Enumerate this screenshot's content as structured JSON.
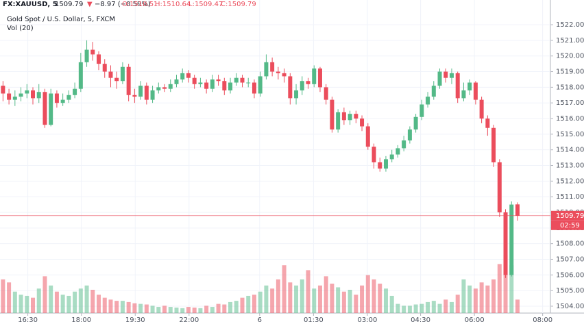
{
  "chart_data": {
    "type": "candlestick",
    "header": [
      "FX:XAUUSD, 5",
      "1509.79",
      "▼",
      "−8.97 (−0.59%)",
      "O:1510.51",
      "H:1510.64",
      "L:1509.47",
      "C:1509.79"
    ],
    "title": "Gold Spot / U.S. Dollar, 5, FXCM",
    "volume_label": "Vol (20)",
    "last_price_label": "1509.79",
    "countdown_label": "02:59",
    "up_color": "#53b987",
    "down_color": "#eb4d5c",
    "grid": true,
    "ylim": [
      1503.56,
      1523.58
    ],
    "yticks": [
      {
        "value": 1504,
        "label": "1504.00"
      },
      {
        "value": 1505,
        "label": "1505.00"
      },
      {
        "value": 1506,
        "label": "1506.00"
      },
      {
        "value": 1507,
        "label": "1507.00"
      },
      {
        "value": 1508,
        "label": "1508.00"
      },
      {
        "value": 1509,
        "label": "1509.00"
      },
      {
        "value": 1510,
        "label": "1510.00"
      },
      {
        "value": 1511,
        "label": "1511.00"
      },
      {
        "value": 1512,
        "label": "1512.00"
      },
      {
        "value": 1513,
        "label": "1513.00"
      },
      {
        "value": 1514,
        "label": "1514.00"
      },
      {
        "value": 1515,
        "label": "1515.00"
      },
      {
        "value": 1516,
        "label": "1516.00"
      },
      {
        "value": 1517,
        "label": "1517.00"
      },
      {
        "value": 1518,
        "label": "1518.00"
      },
      {
        "value": 1519,
        "label": "1519.00"
      },
      {
        "value": 1520,
        "label": "1520.00"
      },
      {
        "value": 1521,
        "label": "1521.00"
      },
      {
        "value": 1522,
        "label": "1522.00"
      }
    ],
    "xlim": [
      0,
      92
    ],
    "xticks": [
      {
        "value": 4.65,
        "label": "16:30"
      },
      {
        "value": 13.6,
        "label": "18:00"
      },
      {
        "value": 22.6,
        "label": "19:30"
      },
      {
        "value": 31.6,
        "label": "22:00"
      },
      {
        "value": 43.4,
        "label": "6"
      },
      {
        "value": 52.4,
        "label": "01:30"
      },
      {
        "value": 61.4,
        "label": "03:00"
      },
      {
        "value": 70.3,
        "label": "04:30"
      },
      {
        "value": 79.3,
        "label": "06:00"
      },
      {
        "value": 90.7,
        "label": "08:00"
      }
    ],
    "series": [
      {
        "open": [
          1518.1,
          1517.6,
          1517.2,
          1517.4,
          1517.6,
          1517.8,
          1517.3,
          1517.7,
          1515.6,
          1517.6,
          1517.0,
          1517.2,
          1517.5,
          1517.9,
          1519.6,
          1520.4,
          1520.1,
          1519.5,
          1519.0,
          1518.6,
          1518.4,
          1519.3,
          1517.5,
          1517.4,
          1518.1,
          1517.2,
          1517.8,
          1518.0,
          1517.9,
          1518.2,
          1518.5,
          1518.9,
          1518.6,
          1518.2,
          1518.3,
          1517.9,
          1518.5,
          1518.4,
          1517.8,
          1518.3,
          1518.6,
          1518.3,
          1518.3,
          1517.6,
          1518.7,
          1519.6,
          1519.0,
          1518.9,
          1518.7,
          1517.3,
          1517.8,
          1518.4,
          1518.2,
          1519.2,
          1518.0,
          1517.2,
          1515.3,
          1516.4,
          1515.9,
          1516.3,
          1516.0,
          1515.5,
          1514.2,
          1513.2,
          1512.8,
          1513.4,
          1513.7,
          1514.1,
          1514.6,
          1515.3,
          1516.1,
          1516.9,
          1517.4,
          1518.1,
          1519.0,
          1518.6,
          1518.9,
          1517.3,
          1517.8,
          1518.3,
          1517.2,
          1516.0,
          1515.4,
          1513.2,
          1510.0,
          1506.0,
          1510.51
        ],
        "high": [
          1518.4,
          1517.9,
          1517.8,
          1518.0,
          1518.2,
          1518.0,
          1518.2,
          1517.9,
          1517.9,
          1517.8,
          1517.6,
          1517.8,
          1518.3,
          1520.2,
          1521.0,
          1520.9,
          1520.3,
          1519.8,
          1519.4,
          1519.0,
          1519.6,
          1519.5,
          1517.9,
          1518.4,
          1518.3,
          1518.1,
          1518.3,
          1518.2,
          1518.5,
          1518.8,
          1519.2,
          1519.1,
          1518.8,
          1518.6,
          1518.5,
          1518.8,
          1518.8,
          1518.6,
          1518.6,
          1518.9,
          1518.8,
          1518.6,
          1518.5,
          1519.0,
          1520.1,
          1519.9,
          1519.3,
          1519.2,
          1518.9,
          1518.2,
          1518.7,
          1518.6,
          1519.4,
          1519.3,
          1518.2,
          1517.4,
          1516.6,
          1516.7,
          1516.5,
          1516.5,
          1516.2,
          1515.7,
          1514.4,
          1513.5,
          1513.6,
          1514.0,
          1514.3,
          1514.9,
          1515.5,
          1516.3,
          1517.2,
          1517.7,
          1518.4,
          1519.2,
          1519.2,
          1519.2,
          1519.0,
          1518.3,
          1518.5,
          1518.4,
          1517.4,
          1516.2,
          1515.6,
          1513.4,
          1510.2,
          1510.7,
          1510.64
        ],
        "low": [
          1517.1,
          1516.9,
          1516.8,
          1517.1,
          1517.3,
          1516.9,
          1517.0,
          1515.4,
          1515.5,
          1516.7,
          1516.8,
          1517.0,
          1517.3,
          1517.7,
          1519.3,
          1519.7,
          1519.1,
          1518.6,
          1518.0,
          1517.9,
          1518.2,
          1517.1,
          1517.0,
          1517.2,
          1516.9,
          1517.0,
          1517.6,
          1517.7,
          1517.7,
          1518.0,
          1518.3,
          1518.3,
          1517.9,
          1518.0,
          1517.6,
          1517.7,
          1518.1,
          1517.5,
          1517.6,
          1518.1,
          1518.0,
          1518.0,
          1517.3,
          1517.4,
          1518.5,
          1518.7,
          1518.5,
          1518.3,
          1516.9,
          1516.9,
          1517.5,
          1517.9,
          1518.0,
          1517.7,
          1516.9,
          1515.1,
          1515.1,
          1515.6,
          1515.6,
          1515.7,
          1515.2,
          1514.0,
          1512.8,
          1512.6,
          1512.6,
          1513.2,
          1513.5,
          1513.9,
          1514.4,
          1515.1,
          1515.9,
          1516.7,
          1517.2,
          1517.9,
          1518.3,
          1518.2,
          1517.0,
          1517.1,
          1517.5,
          1516.9,
          1515.7,
          1514.9,
          1512.9,
          1509.7,
          1505.8,
          1505.9,
          1509.47
        ],
        "close": [
          1517.6,
          1517.2,
          1517.4,
          1517.6,
          1517.8,
          1517.3,
          1517.7,
          1515.6,
          1517.6,
          1517.0,
          1517.2,
          1517.5,
          1517.9,
          1519.6,
          1520.4,
          1520.1,
          1519.5,
          1519.0,
          1518.6,
          1518.4,
          1519.3,
          1517.5,
          1517.4,
          1518.1,
          1517.2,
          1517.8,
          1518.0,
          1517.9,
          1518.2,
          1518.5,
          1518.9,
          1518.6,
          1518.2,
          1518.3,
          1517.9,
          1518.5,
          1518.4,
          1517.8,
          1518.3,
          1518.6,
          1518.3,
          1518.3,
          1517.6,
          1518.7,
          1519.6,
          1519.0,
          1518.9,
          1518.7,
          1517.3,
          1517.8,
          1518.4,
          1518.2,
          1519.2,
          1518.0,
          1517.2,
          1515.3,
          1516.4,
          1515.9,
          1516.3,
          1516.0,
          1515.5,
          1514.2,
          1513.2,
          1512.8,
          1513.4,
          1513.7,
          1514.1,
          1514.6,
          1515.3,
          1516.1,
          1516.9,
          1517.4,
          1518.1,
          1519.0,
          1518.6,
          1518.9,
          1517.3,
          1517.8,
          1518.3,
          1517.2,
          1516.0,
          1515.4,
          1513.2,
          1510.0,
          1506.0,
          1510.5,
          1509.79
        ],
        "volume": [
          55,
          50,
          35,
          30,
          28,
          25,
          40,
          60,
          45,
          35,
          30,
          28,
          35,
          40,
          45,
          38,
          30,
          25,
          22,
          20,
          20,
          18,
          16,
          15,
          14,
          12,
          10,
          12,
          10,
          9,
          8,
          10,
          9,
          8,
          12,
          10,
          15,
          14,
          18,
          20,
          25,
          28,
          30,
          35,
          45,
          40,
          55,
          78,
          50,
          45,
          55,
          70,
          40,
          45,
          60,
          48,
          42,
          35,
          38,
          30,
          45,
          62,
          55,
          48,
          40,
          28,
          15,
          12,
          12,
          14,
          15,
          18,
          20,
          15,
          22,
          18,
          30,
          55,
          45,
          40,
          50,
          45,
          55,
          80,
          95,
          78,
          22
        ]
      }
    ]
  }
}
